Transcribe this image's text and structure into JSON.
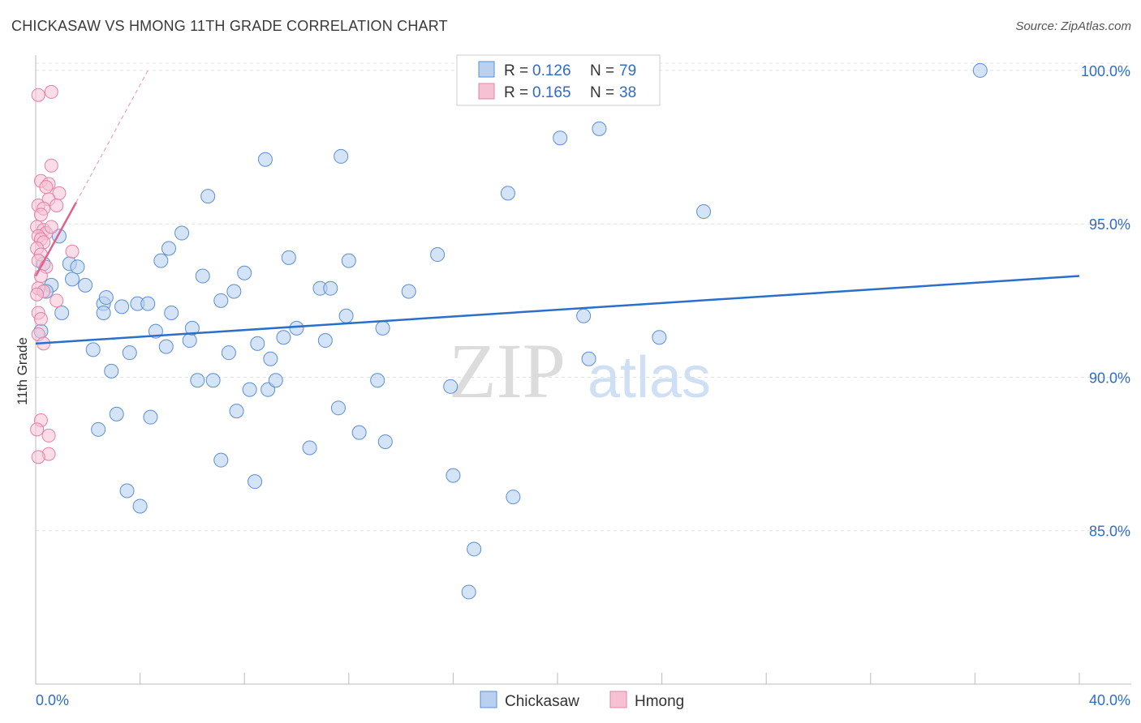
{
  "title": "CHICKASAW VS HMONG 11TH GRADE CORRELATION CHART",
  "source": "Source: ZipAtlas.com",
  "watermark": {
    "zip": "ZIP",
    "atlas": "atlas"
  },
  "colors": {
    "blue": "#5b8fd6",
    "blue_fill": "#b9d0f0",
    "blue_line": "#2a6fc9",
    "pink": "#e77fa3",
    "pink_fill": "#f7c1d4",
    "pink_line": "#e0608e",
    "axis_label": "#2f6cc4",
    "grid": "#e2e2e2"
  },
  "legend": {
    "rows": [
      {
        "r_label": "R =",
        "r_value": "0.126",
        "n_label": "N =",
        "n_value": "79",
        "series": "Chickasaw"
      },
      {
        "r_label": "R =",
        "r_value": "0.165",
        "n_label": "N =",
        "n_value": "38",
        "series": "Hmong"
      }
    ]
  },
  "chart_data": {
    "type": "scatter",
    "title": "CHICKASAW VS HMONG 11TH GRADE CORRELATION CHART",
    "xlabel": "",
    "ylabel": "11th Grade",
    "xlim": [
      0,
      40
    ],
    "ylim": [
      80,
      100.5
    ],
    "x_tick_labels": [
      "0.0%",
      "40.0%"
    ],
    "y_ticks": [
      85,
      90,
      95,
      100
    ],
    "y_tick_labels": [
      "85.0%",
      "90.0%",
      "95.0%",
      "100.0%"
    ],
    "grid": true,
    "legend_position": "bottom",
    "series": [
      {
        "name": "Chickasaw",
        "r": 0.126,
        "n": 79,
        "trend": {
          "x": [
            0,
            40
          ],
          "y": [
            91.1,
            93.3
          ]
        },
        "points": [
          {
            "x": 0.3,
            "y": 93.7
          },
          {
            "x": 0.6,
            "y": 93.0
          },
          {
            "x": 0.9,
            "y": 94.6
          },
          {
            "x": 1.0,
            "y": 92.1
          },
          {
            "x": 1.3,
            "y": 93.7
          },
          {
            "x": 1.4,
            "y": 93.2
          },
          {
            "x": 1.6,
            "y": 93.6
          },
          {
            "x": 1.9,
            "y": 93.0
          },
          {
            "x": 2.2,
            "y": 90.9
          },
          {
            "x": 2.4,
            "y": 88.3
          },
          {
            "x": 2.6,
            "y": 92.4
          },
          {
            "x": 2.6,
            "y": 92.1
          },
          {
            "x": 2.7,
            "y": 92.6
          },
          {
            "x": 2.9,
            "y": 90.2
          },
          {
            "x": 3.1,
            "y": 88.8
          },
          {
            "x": 3.3,
            "y": 92.3
          },
          {
            "x": 3.5,
            "y": 86.3
          },
          {
            "x": 3.6,
            "y": 90.8
          },
          {
            "x": 3.9,
            "y": 92.4
          },
          {
            "x": 4.0,
            "y": 85.8
          },
          {
            "x": 4.3,
            "y": 92.4
          },
          {
            "x": 4.4,
            "y": 88.7
          },
          {
            "x": 4.6,
            "y": 91.5
          },
          {
            "x": 4.8,
            "y": 93.8
          },
          {
            "x": 5.0,
            "y": 91.0
          },
          {
            "x": 5.1,
            "y": 94.2
          },
          {
            "x": 5.2,
            "y": 92.1
          },
          {
            "x": 5.6,
            "y": 94.7
          },
          {
            "x": 5.9,
            "y": 91.2
          },
          {
            "x": 6.0,
            "y": 91.6
          },
          {
            "x": 6.2,
            "y": 89.9
          },
          {
            "x": 6.4,
            "y": 93.3
          },
          {
            "x": 6.6,
            "y": 95.9
          },
          {
            "x": 6.8,
            "y": 89.9
          },
          {
            "x": 7.1,
            "y": 92.5
          },
          {
            "x": 7.1,
            "y": 87.3
          },
          {
            "x": 7.4,
            "y": 90.8
          },
          {
            "x": 7.6,
            "y": 92.8
          },
          {
            "x": 7.7,
            "y": 88.9
          },
          {
            "x": 8.0,
            "y": 93.4
          },
          {
            "x": 8.2,
            "y": 89.6
          },
          {
            "x": 8.4,
            "y": 86.6
          },
          {
            "x": 8.5,
            "y": 91.1
          },
          {
            "x": 8.8,
            "y": 97.1
          },
          {
            "x": 8.9,
            "y": 89.6
          },
          {
            "x": 9.0,
            "y": 90.6
          },
          {
            "x": 9.2,
            "y": 89.9
          },
          {
            "x": 9.5,
            "y": 91.3
          },
          {
            "x": 9.7,
            "y": 93.9
          },
          {
            "x": 10.0,
            "y": 91.6
          },
          {
            "x": 10.5,
            "y": 87.7
          },
          {
            "x": 10.9,
            "y": 92.9
          },
          {
            "x": 11.1,
            "y": 91.2
          },
          {
            "x": 11.3,
            "y": 92.9
          },
          {
            "x": 11.6,
            "y": 89.0
          },
          {
            "x": 11.7,
            "y": 97.2
          },
          {
            "x": 11.9,
            "y": 92.0
          },
          {
            "x": 12.0,
            "y": 93.8
          },
          {
            "x": 12.4,
            "y": 88.2
          },
          {
            "x": 13.1,
            "y": 89.9
          },
          {
            "x": 13.3,
            "y": 91.6
          },
          {
            "x": 13.4,
            "y": 87.9
          },
          {
            "x": 14.3,
            "y": 92.8
          },
          {
            "x": 15.4,
            "y": 94.0
          },
          {
            "x": 15.9,
            "y": 89.7
          },
          {
            "x": 16.0,
            "y": 86.8
          },
          {
            "x": 16.8,
            "y": 84.4
          },
          {
            "x": 16.6,
            "y": 83.0
          },
          {
            "x": 18.1,
            "y": 96.0
          },
          {
            "x": 18.3,
            "y": 86.1
          },
          {
            "x": 20.1,
            "y": 97.8
          },
          {
            "x": 21.0,
            "y": 92.0
          },
          {
            "x": 21.2,
            "y": 90.6
          },
          {
            "x": 21.6,
            "y": 98.1
          },
          {
            "x": 23.9,
            "y": 91.3
          },
          {
            "x": 25.6,
            "y": 95.4
          },
          {
            "x": 36.2,
            "y": 100.0
          },
          {
            "x": 0.2,
            "y": 91.5
          },
          {
            "x": 0.4,
            "y": 92.8
          }
        ]
      },
      {
        "name": "Hmong",
        "r": 0.165,
        "n": 38,
        "trend": {
          "x": [
            0,
            1.55
          ],
          "y": [
            93.3,
            95.7
          ]
        },
        "trend_dashed": {
          "x": [
            1.55,
            4.3
          ],
          "y": [
            95.7,
            100.0
          ]
        },
        "points": [
          {
            "x": 0.1,
            "y": 99.2
          },
          {
            "x": 0.6,
            "y": 99.3
          },
          {
            "x": 0.6,
            "y": 96.9
          },
          {
            "x": 0.2,
            "y": 96.4
          },
          {
            "x": 0.5,
            "y": 96.3
          },
          {
            "x": 0.4,
            "y": 96.2
          },
          {
            "x": 0.9,
            "y": 96.0
          },
          {
            "x": 0.5,
            "y": 95.8
          },
          {
            "x": 0.1,
            "y": 95.6
          },
          {
            "x": 0.3,
            "y": 95.5
          },
          {
            "x": 0.8,
            "y": 95.6
          },
          {
            "x": 0.2,
            "y": 95.3
          },
          {
            "x": 0.05,
            "y": 94.9
          },
          {
            "x": 0.3,
            "y": 94.8
          },
          {
            "x": 0.4,
            "y": 94.7
          },
          {
            "x": 0.1,
            "y": 94.6
          },
          {
            "x": 0.2,
            "y": 94.5
          },
          {
            "x": 0.3,
            "y": 94.4
          },
          {
            "x": 0.05,
            "y": 94.2
          },
          {
            "x": 1.4,
            "y": 94.1
          },
          {
            "x": 0.2,
            "y": 94.0
          },
          {
            "x": 0.1,
            "y": 93.8
          },
          {
            "x": 0.4,
            "y": 93.6
          },
          {
            "x": 0.2,
            "y": 93.3
          },
          {
            "x": 0.1,
            "y": 92.9
          },
          {
            "x": 0.3,
            "y": 92.8
          },
          {
            "x": 0.05,
            "y": 92.7
          },
          {
            "x": 0.8,
            "y": 92.5
          },
          {
            "x": 0.1,
            "y": 92.1
          },
          {
            "x": 0.2,
            "y": 91.9
          },
          {
            "x": 0.1,
            "y": 91.4
          },
          {
            "x": 0.3,
            "y": 91.1
          },
          {
            "x": 0.2,
            "y": 88.6
          },
          {
            "x": 0.05,
            "y": 88.3
          },
          {
            "x": 0.5,
            "y": 88.1
          },
          {
            "x": 0.5,
            "y": 87.5
          },
          {
            "x": 0.1,
            "y": 87.4
          },
          {
            "x": 0.6,
            "y": 94.9
          }
        ]
      }
    ]
  }
}
